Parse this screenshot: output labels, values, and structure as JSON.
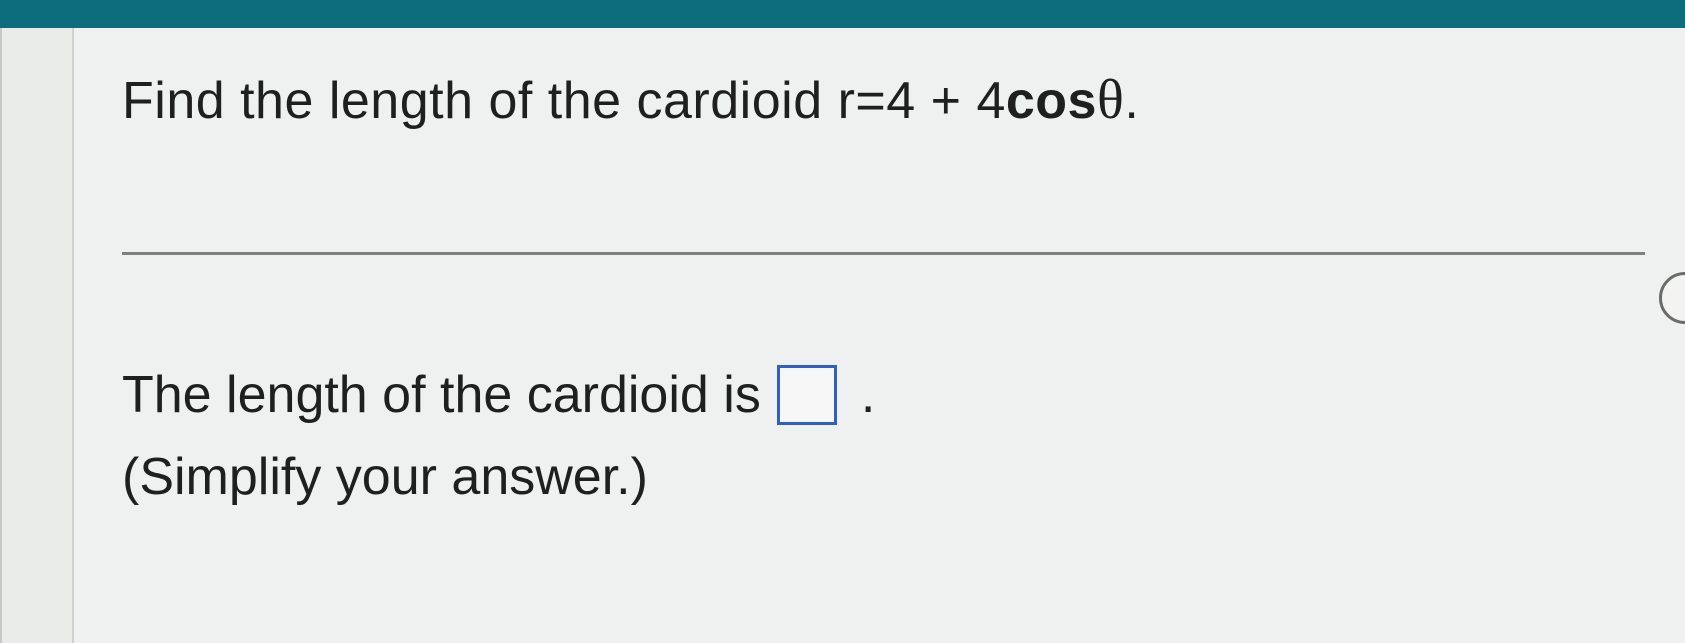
{
  "colors": {
    "topbar": "#0d6d7c",
    "page_bg": "#eef1ef",
    "gutter_bg": "#eaecea",
    "gutter_border": "#cfd1cf",
    "divider": "#7e807e",
    "text": "#1f1f1f",
    "input_border": "#2f5fc2",
    "bubble_border": "#6a6c6a"
  },
  "typography": {
    "body_font": "Arial",
    "body_size_pt": 39,
    "theta_font": "Times New Roman",
    "theta_size_pt": 42
  },
  "question": {
    "text_prefix": "Find the length of the cardioid ",
    "equation_lhs": "r",
    "equation_eq": " = ",
    "equation_rhs_a": "4 + 4 ",
    "equation_cos": "cos ",
    "equation_theta": "θ",
    "equation_period": "."
  },
  "answer": {
    "prefix": "The length of the cardioid is",
    "input_value": "",
    "period": ".",
    "hint": "(Simplify your answer.)"
  }
}
